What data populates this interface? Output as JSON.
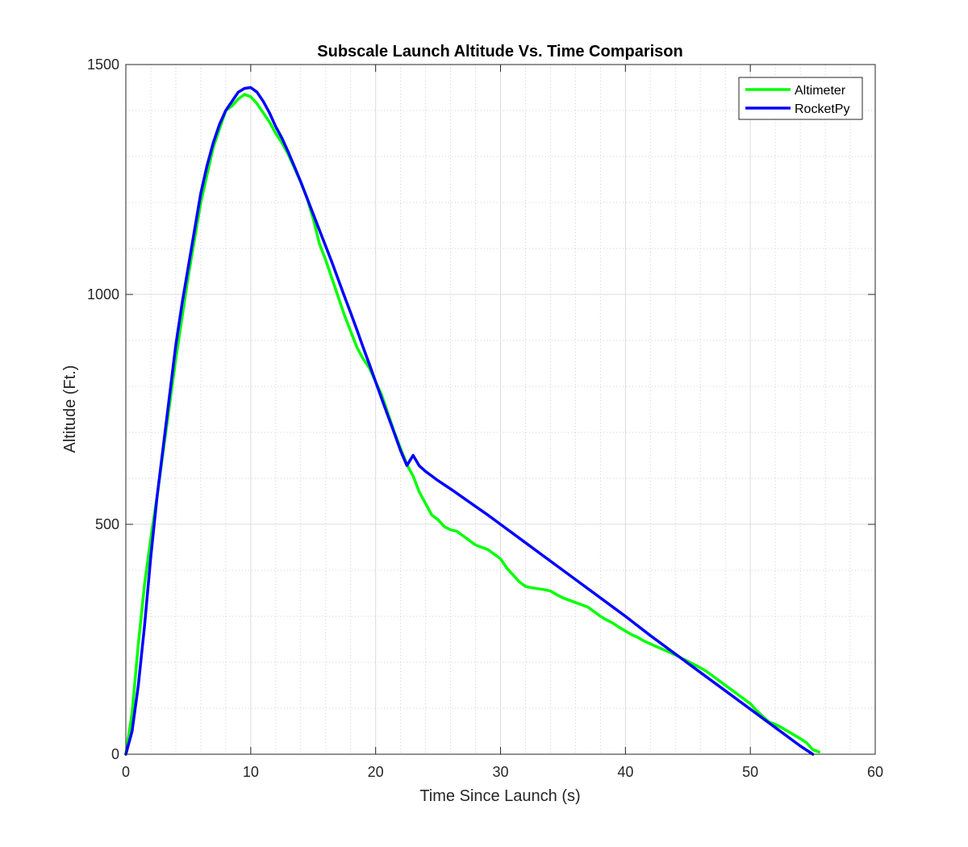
{
  "chart_data": {
    "type": "line",
    "title": "Subscale Launch Altitude Vs. Time Comparison",
    "xlabel": "Time Since Launch (s)",
    "ylabel": "Altitude (Ft.)",
    "xlim": [
      0,
      60
    ],
    "ylim": [
      0,
      1500
    ],
    "xticks": [
      0,
      10,
      20,
      30,
      40,
      50,
      60
    ],
    "yticks": [
      0,
      500,
      1000,
      1500
    ],
    "xminor_step": 2,
    "yminor_step": 100,
    "grid": true,
    "legend_position": "top-right",
    "series": [
      {
        "name": "Altimeter",
        "color": "#00ff00",
        "x": [
          0,
          0.5,
          1,
          1.5,
          2,
          2.5,
          3,
          3.5,
          4,
          4.5,
          5,
          5.5,
          6,
          6.5,
          7,
          7.5,
          8,
          8.5,
          9,
          9.5,
          10,
          10.5,
          11,
          11.5,
          12,
          12.5,
          13,
          13.5,
          14,
          14.5,
          15,
          15.5,
          16,
          16.5,
          17,
          17.5,
          18,
          18.5,
          19,
          19.5,
          20,
          20.5,
          21,
          21.5,
          22,
          22.5,
          23,
          23.5,
          24,
          24.5,
          25,
          25.5,
          26,
          26.5,
          27,
          27.5,
          28,
          28.5,
          29,
          29.5,
          30,
          30.5,
          31,
          31.5,
          32,
          32.5,
          33,
          33.5,
          34,
          34.5,
          35,
          35.5,
          36,
          36.5,
          37,
          37.5,
          38,
          38.5,
          39,
          39.5,
          40,
          40.5,
          41,
          41.5,
          42,
          42.5,
          43,
          43.5,
          44,
          44.5,
          45,
          45.5,
          46,
          46.5,
          47,
          47.5,
          48,
          48.5,
          49,
          49.5,
          50,
          50.5,
          51,
          51.5,
          52,
          52.5,
          53,
          53.5,
          54,
          54.5,
          55,
          55.5
        ],
        "y": [
          0,
          90,
          240,
          370,
          470,
          560,
          660,
          760,
          860,
          950,
          1040,
          1120,
          1200,
          1260,
          1320,
          1360,
          1400,
          1410,
          1425,
          1435,
          1430,
          1415,
          1395,
          1375,
          1350,
          1330,
          1305,
          1275,
          1245,
          1210,
          1165,
          1110,
          1075,
          1035,
          995,
          955,
          920,
          885,
          860,
          840,
          810,
          780,
          740,
          700,
          665,
          630,
          605,
          570,
          545,
          520,
          510,
          495,
          488,
          485,
          475,
          465,
          455,
          450,
          445,
          435,
          425,
          405,
          390,
          375,
          365,
          362,
          360,
          358,
          355,
          347,
          340,
          335,
          330,
          325,
          320,
          310,
          300,
          292,
          285,
          276,
          268,
          260,
          254,
          246,
          240,
          234,
          228,
          222,
          216,
          209,
          202,
          195,
          188,
          180,
          170,
          160,
          150,
          140,
          130,
          120,
          110,
          95,
          82,
          70,
          65,
          58,
          50,
          42,
          34,
          25,
          10,
          5
        ]
      },
      {
        "name": "RocketPy",
        "color": "#0000ff",
        "x": [
          0,
          0.5,
          1,
          1.5,
          2,
          2.5,
          3,
          3.5,
          4,
          4.5,
          5,
          5.5,
          6,
          6.5,
          7,
          7.5,
          8,
          8.5,
          9,
          9.5,
          10,
          10.5,
          11,
          11.5,
          12,
          12.5,
          13,
          13.5,
          14,
          14.5,
          15,
          15.5,
          16,
          16.5,
          17,
          17.5,
          18,
          18.5,
          19,
          19.5,
          20,
          20.5,
          21,
          21.5,
          22,
          22.5,
          23,
          23.5,
          24,
          24.5,
          25,
          25.5,
          26,
          27,
          28,
          29,
          30,
          32,
          34,
          36,
          38,
          40,
          42,
          44,
          46,
          48,
          50,
          52,
          54,
          55
        ],
        "y": [
          0,
          50,
          150,
          280,
          430,
          560,
          670,
          780,
          890,
          980,
          1060,
          1140,
          1220,
          1280,
          1330,
          1370,
          1400,
          1420,
          1440,
          1448,
          1450,
          1440,
          1420,
          1395,
          1365,
          1340,
          1310,
          1278,
          1245,
          1210,
          1175,
          1140,
          1105,
          1070,
          1033,
          996,
          960,
          923,
          885,
          848,
          810,
          772,
          735,
          698,
          660,
          628,
          650,
          627,
          615,
          605,
          595,
          586,
          577,
          558,
          539,
          520,
          500,
          460,
          420,
          380,
          340,
          300,
          258,
          218,
          178,
          138,
          98,
          58,
          18,
          0
        ]
      }
    ]
  }
}
